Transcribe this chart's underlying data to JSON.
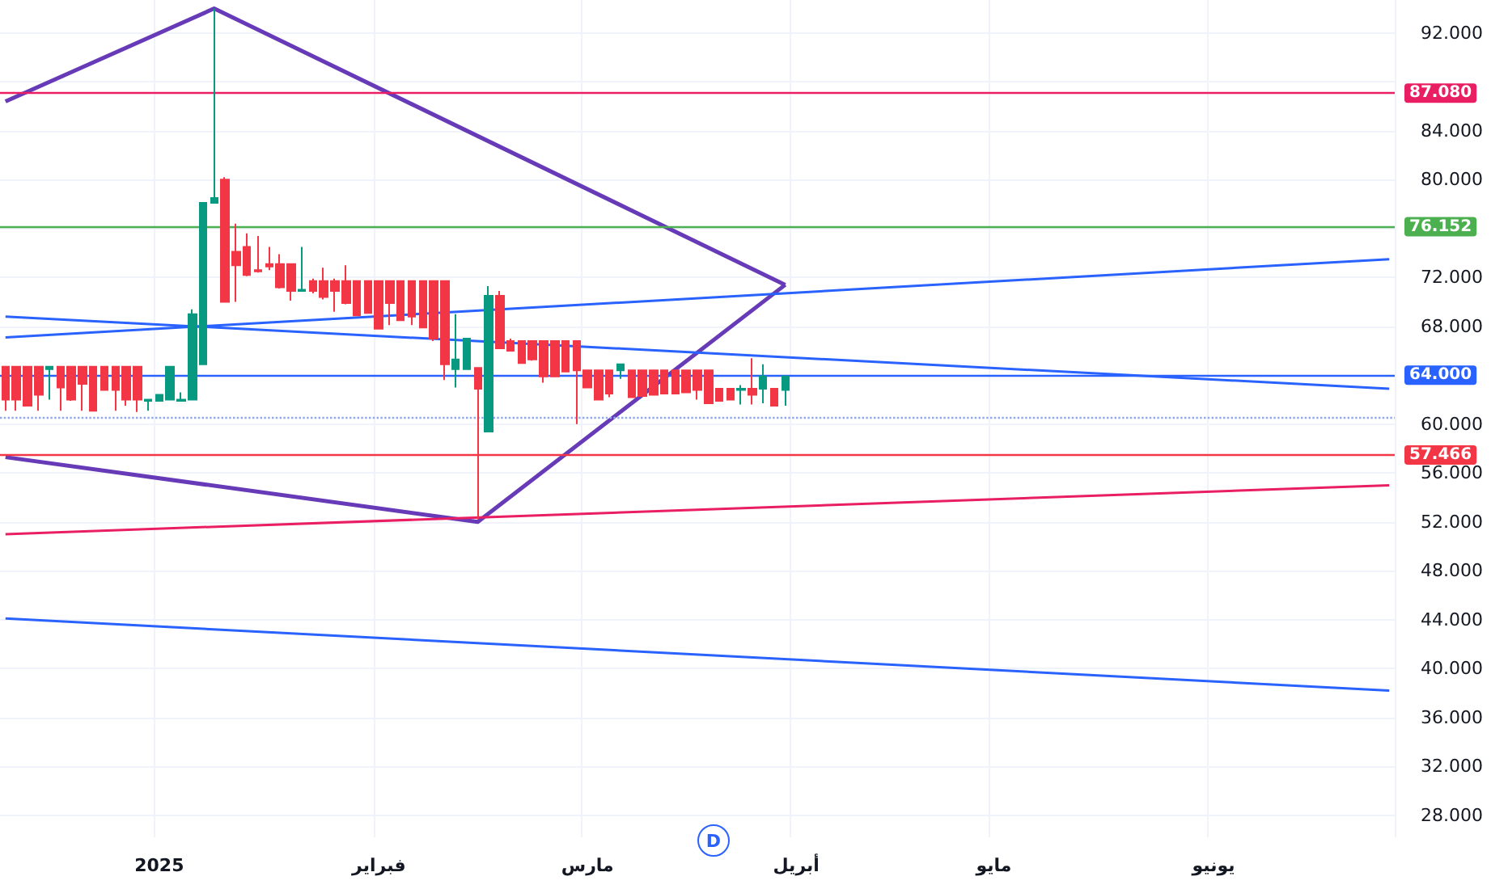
{
  "chart_data": {
    "type": "candlestick",
    "grid": true,
    "categories": [
      null,
      null,
      null,
      null,
      null,
      null,
      null,
      null,
      null,
      null,
      null,
      null,
      null,
      null,
      "2025",
      null,
      null,
      null,
      null,
      null,
      null,
      null,
      null,
      null,
      null,
      null,
      null,
      null,
      null,
      null,
      null,
      null,
      null,
      null,
      "فبراير",
      null,
      null,
      null,
      null,
      null,
      null,
      null,
      null,
      null,
      null,
      null,
      null,
      null,
      null,
      null,
      null,
      null,
      null,
      "مارس",
      null,
      null,
      null,
      null,
      null,
      null,
      null,
      null,
      null,
      null,
      null,
      null,
      null,
      null,
      null,
      null,
      null,
      null,
      "أبريل",
      null,
      null,
      null,
      null,
      null,
      null,
      null,
      null,
      null,
      null,
      null,
      null,
      null,
      null,
      null,
      null,
      null,
      "مايو",
      null,
      null,
      null,
      null,
      null,
      null,
      null,
      null,
      null,
      null,
      null,
      null,
      null,
      null,
      null,
      null,
      null,
      null,
      null,
      "يونيو",
      null,
      null,
      null,
      null,
      null,
      null,
      null,
      null,
      null,
      null,
      null,
      null,
      null,
      null,
      null,
      null
    ],
    "ylim": [
      26.2,
      94.7
    ],
    "yticks": [
      {
        "value": 28,
        "label": "28.000"
      },
      {
        "value": 32,
        "label": "32.000"
      },
      {
        "value": 36,
        "label": "36.000"
      },
      {
        "value": 40,
        "label": "40.000"
      },
      {
        "value": 44,
        "label": "44.000"
      },
      {
        "value": 48,
        "label": "48.000"
      },
      {
        "value": 52,
        "label": "52.000"
      },
      {
        "value": 56,
        "label": "56.000"
      },
      {
        "value": 60,
        "label": "60.000"
      },
      {
        "value": 64,
        "label": null
      },
      {
        "value": 68,
        "label": "68.000"
      },
      {
        "value": 72,
        "label": "72.000"
      },
      {
        "value": 76,
        "label": null
      },
      {
        "value": 80,
        "label": "80.000"
      },
      {
        "value": 84,
        "label": "84.000"
      },
      {
        "value": 88,
        "label": null
      },
      {
        "value": 92,
        "label": "92.000"
      }
    ],
    "annotations": [
      "D"
    ],
    "ref_lines": [
      {
        "axis": "y",
        "value": 87.08,
        "label": "87.080",
        "color": "#e91e63"
      },
      {
        "axis": "y",
        "value": 76.152,
        "label": "76.152",
        "color": "#4caf50"
      },
      {
        "axis": "y",
        "value": 64,
        "label": "64.000",
        "color": "#2962ff"
      },
      {
        "axis": "y",
        "value": 57.466,
        "label": "57.466",
        "color": "#f23645"
      },
      {
        "axis": "y",
        "value": 60.5,
        "color": "#90a8f0",
        "line_style": "dotted"
      }
    ],
    "series": [
      {
        "ohlc": [
          [
            64.7,
            64.7,
            61.1,
            62.0
          ],
          [
            64.7,
            64.7,
            61.1,
            62.0
          ],
          [
            64.7,
            64.7,
            61.5,
            61.5
          ],
          [
            64.7,
            64.7,
            61.1,
            62.4
          ],
          [
            64.5,
            64.7,
            62.0,
            64.7
          ],
          [
            64.7,
            64.7,
            61.1,
            63.0
          ],
          [
            64.7,
            64.7,
            61.9,
            62.0
          ],
          [
            64.7,
            64.7,
            61.1,
            63.3
          ],
          [
            64.7,
            64.7,
            61.1,
            61.1
          ],
          [
            64.7,
            64.7,
            62.8,
            62.8
          ],
          [
            64.7,
            64.7,
            61.1,
            62.8
          ],
          [
            64.7,
            64.7,
            61.5,
            62.0
          ],
          [
            64.7,
            64.7,
            61.0,
            62.0
          ],
          [
            61.9,
            62.0,
            61.1,
            62.0
          ],
          [
            61.9,
            62.4,
            61.9,
            62.4
          ],
          [
            62.0,
            64.7,
            62.0,
            64.7
          ],
          [
            61.9,
            62.6,
            61.9,
            62.0
          ],
          [
            62.0,
            69.4,
            62.0,
            69.0
          ],
          [
            64.9,
            78.1,
            64.9,
            78.1
          ],
          [
            78.1,
            94.0,
            78.1,
            78.5
          ],
          [
            80.0,
            80.2,
            70.0,
            70.0
          ],
          [
            74.1,
            76.4,
            70.0,
            73.0
          ],
          [
            74.5,
            75.6,
            72.1,
            72.2
          ],
          [
            72.6,
            75.4,
            72.4,
            72.5
          ],
          [
            73.1,
            74.5,
            72.6,
            72.9
          ],
          [
            73.1,
            73.9,
            71.1,
            71.2
          ],
          [
            73.1,
            73.1,
            70.1,
            70.9
          ],
          [
            70.9,
            74.5,
            70.9,
            71.0
          ],
          [
            71.7,
            71.9,
            70.7,
            70.9
          ],
          [
            71.7,
            72.8,
            70.2,
            70.4
          ],
          [
            71.7,
            71.9,
            69.2,
            70.9
          ],
          [
            71.7,
            73.0,
            69.8,
            69.9
          ],
          [
            71.7,
            71.7,
            68.9,
            68.9
          ],
          [
            71.7,
            71.7,
            69.1,
            69.1
          ],
          [
            71.7,
            71.7,
            67.8,
            67.8
          ],
          [
            71.7,
            71.7,
            68.1,
            69.9
          ],
          [
            71.7,
            71.7,
            68.5,
            68.5
          ],
          [
            71.7,
            71.7,
            68.1,
            68.8
          ],
          [
            71.7,
            71.7,
            67.9,
            67.9
          ],
          [
            71.7,
            71.7,
            66.8,
            67.0
          ],
          [
            71.7,
            71.7,
            63.6,
            64.9
          ],
          [
            64.5,
            69.0,
            63.0,
            65.3
          ],
          [
            64.5,
            67.0,
            64.5,
            67.0
          ],
          [
            64.6,
            64.6,
            52.2,
            62.9
          ],
          [
            59.4,
            71.3,
            59.4,
            70.5
          ],
          [
            70.5,
            70.9,
            66.2,
            66.2
          ],
          [
            66.8,
            67.0,
            66.0,
            66.0
          ],
          [
            66.8,
            66.8,
            65.0,
            65.0
          ],
          [
            66.8,
            66.8,
            65.2,
            65.3
          ],
          [
            66.8,
            66.8,
            63.4,
            63.9
          ],
          [
            66.8,
            66.8,
            63.9,
            63.9
          ],
          [
            66.8,
            66.8,
            64.3,
            64.3
          ],
          [
            66.8,
            66.8,
            60.0,
            64.4
          ],
          [
            64.4,
            64.4,
            63.0,
            63.0
          ],
          [
            64.4,
            64.4,
            62.0,
            62.0
          ],
          [
            64.4,
            64.4,
            62.2,
            62.5
          ],
          [
            64.4,
            64.9,
            63.7,
            64.9
          ],
          [
            64.4,
            64.4,
            62.2,
            62.2
          ],
          [
            64.4,
            64.4,
            62.3,
            62.3
          ],
          [
            64.4,
            64.4,
            62.4,
            62.4
          ],
          [
            64.4,
            64.4,
            62.5,
            62.5
          ],
          [
            64.4,
            64.4,
            62.5,
            62.5
          ],
          [
            64.4,
            64.4,
            62.6,
            62.6
          ],
          [
            64.4,
            64.4,
            62.0,
            62.8
          ],
          [
            64.4,
            64.4,
            61.7,
            61.7
          ],
          [
            62.9,
            62.9,
            61.9,
            61.9
          ],
          [
            62.9,
            62.9,
            62.0,
            62.0
          ],
          [
            62.8,
            63.2,
            61.6,
            62.9
          ],
          [
            62.9,
            65.4,
            61.6,
            62.4
          ],
          [
            62.9,
            64.9,
            61.7,
            63.9
          ],
          [
            62.9,
            62.9,
            61.5,
            61.5
          ],
          [
            62.8,
            63.9,
            61.5,
            63.9
          ],
          null,
          null,
          null,
          null,
          null,
          null,
          null,
          null,
          null,
          null,
          null,
          null,
          null,
          null,
          null,
          null,
          null,
          null,
          null,
          null,
          null,
          null,
          null,
          null,
          null,
          null,
          null,
          null,
          null,
          null,
          null,
          null,
          null,
          null,
          null,
          null,
          null,
          null,
          null,
          null,
          null,
          null,
          null,
          null,
          null,
          null,
          null,
          null,
          null,
          null,
          null,
          null,
          null,
          null,
          null
        ]
      },
      {
        "type": "line",
        "color": "#673ab7",
        "values": [
          86.4,
          null,
          null,
          null,
          null,
          null,
          null,
          null,
          null,
          null,
          null,
          null,
          null,
          null,
          null,
          null,
          null,
          null,
          null,
          94.0,
          null,
          null,
          null,
          null,
          null,
          null,
          null,
          null,
          null,
          null,
          null,
          null,
          null,
          null,
          null,
          null,
          null,
          null,
          null,
          null,
          null,
          null,
          null,
          null,
          null,
          null,
          null,
          null,
          null,
          null,
          null,
          null,
          null,
          null,
          null,
          null,
          null,
          null,
          null,
          null,
          null,
          null,
          null,
          null,
          null,
          null,
          null,
          null,
          null,
          null,
          null,
          71.4,
          null,
          null,
          null,
          null,
          null,
          null,
          null,
          null,
          null,
          null,
          null,
          null,
          null,
          null,
          null,
          null,
          null,
          null,
          null,
          null,
          null,
          null,
          null,
          null,
          null,
          null,
          null,
          null,
          null,
          null,
          null,
          null,
          null,
          null,
          null,
          null,
          null,
          null,
          null,
          null,
          null,
          null,
          null,
          null,
          null,
          null,
          null,
          null,
          null,
          null,
          null,
          null,
          null,
          null,
          null
        ]
      },
      {
        "type": "line",
        "color": "#673ab7",
        "values": [
          57.3,
          null,
          null,
          null,
          null,
          null,
          null,
          null,
          null,
          null,
          null,
          null,
          null,
          null,
          null,
          null,
          null,
          null,
          null,
          null,
          null,
          null,
          null,
          null,
          null,
          null,
          null,
          null,
          null,
          null,
          null,
          null,
          null,
          null,
          null,
          null,
          null,
          null,
          null,
          null,
          null,
          null,
          null,
          52.0,
          null,
          null,
          null,
          null,
          null,
          null,
          null,
          null,
          null,
          null,
          null,
          null,
          null,
          null,
          null,
          null,
          null,
          null,
          null,
          null,
          null,
          null,
          null,
          null,
          null,
          null,
          null,
          71.4,
          null,
          null,
          null,
          null,
          null,
          null,
          null,
          null,
          null,
          null,
          null,
          null,
          null,
          null,
          null,
          null,
          null,
          null,
          null,
          null,
          null,
          null,
          null,
          null,
          null,
          null,
          null,
          null,
          null,
          null,
          null,
          null,
          null,
          null,
          null,
          null,
          null,
          null,
          null,
          null,
          null,
          null,
          null,
          null,
          null,
          null,
          null,
          null,
          null,
          null,
          null,
          null,
          null,
          null,
          null
        ]
      },
      {
        "type": "line",
        "color": "#2962ff",
        "values": [
          67.1,
          null,
          null,
          null,
          null,
          null,
          null,
          null,
          null,
          null,
          null,
          null,
          null,
          null,
          null,
          null,
          null,
          null,
          null,
          null,
          null,
          null,
          null,
          null,
          null,
          null,
          null,
          null,
          null,
          null,
          null,
          null,
          null,
          null,
          null,
          null,
          null,
          null,
          null,
          null,
          null,
          null,
          null,
          null,
          null,
          null,
          null,
          null,
          null,
          null,
          null,
          null,
          null,
          null,
          null,
          null,
          null,
          null,
          null,
          null,
          null,
          null,
          null,
          null,
          null,
          null,
          null,
          null,
          null,
          null,
          null,
          null,
          null,
          null,
          null,
          null,
          null,
          null,
          null,
          null,
          null,
          null,
          null,
          null,
          null,
          null,
          null,
          null,
          null,
          null,
          null,
          null,
          null,
          null,
          null,
          null,
          null,
          null,
          null,
          null,
          null,
          null,
          null,
          null,
          null,
          null,
          null,
          null,
          null,
          null,
          null,
          null,
          null,
          null,
          null,
          null,
          null,
          null,
          null,
          null,
          null,
          null,
          null,
          null,
          null,
          null,
          73.5
        ]
      },
      {
        "type": "line",
        "color": "#2962ff",
        "values": [
          68.8,
          null,
          null,
          null,
          null,
          null,
          null,
          null,
          null,
          null,
          null,
          null,
          null,
          null,
          null,
          null,
          null,
          null,
          null,
          null,
          null,
          null,
          null,
          null,
          null,
          null,
          null,
          null,
          null,
          null,
          null,
          null,
          null,
          null,
          null,
          null,
          null,
          null,
          null,
          null,
          null,
          null,
          null,
          null,
          null,
          null,
          null,
          null,
          null,
          null,
          null,
          null,
          null,
          null,
          null,
          null,
          null,
          null,
          null,
          null,
          null,
          null,
          null,
          null,
          null,
          null,
          null,
          null,
          null,
          null,
          null,
          null,
          null,
          null,
          null,
          null,
          null,
          null,
          null,
          null,
          null,
          null,
          null,
          null,
          null,
          null,
          null,
          null,
          null,
          null,
          null,
          null,
          null,
          null,
          null,
          null,
          null,
          null,
          null,
          null,
          null,
          null,
          null,
          null,
          null,
          null,
          null,
          null,
          null,
          null,
          null,
          null,
          null,
          null,
          null,
          null,
          null,
          null,
          null,
          null,
          null,
          null,
          null,
          null,
          null,
          null,
          62.9
        ]
      },
      {
        "type": "line",
        "color": "#2962ff",
        "values": [
          44.1,
          null,
          null,
          null,
          null,
          null,
          null,
          null,
          null,
          null,
          null,
          null,
          null,
          null,
          null,
          null,
          null,
          null,
          null,
          null,
          null,
          null,
          null,
          null,
          null,
          null,
          null,
          null,
          null,
          null,
          null,
          null,
          null,
          null,
          null,
          null,
          null,
          null,
          null,
          null,
          null,
          null,
          null,
          null,
          null,
          null,
          null,
          null,
          null,
          null,
          null,
          null,
          null,
          null,
          null,
          null,
          null,
          null,
          null,
          null,
          null,
          null,
          null,
          null,
          null,
          null,
          null,
          null,
          null,
          null,
          null,
          null,
          null,
          null,
          null,
          null,
          null,
          null,
          null,
          null,
          null,
          null,
          null,
          null,
          null,
          null,
          null,
          null,
          null,
          null,
          null,
          null,
          null,
          null,
          null,
          null,
          null,
          null,
          null,
          null,
          null,
          null,
          null,
          null,
          null,
          null,
          null,
          null,
          null,
          null,
          null,
          null,
          null,
          null,
          null,
          null,
          null,
          null,
          null,
          null,
          null,
          null,
          null,
          null,
          null,
          null,
          38.2
        ]
      },
      {
        "type": "line",
        "color": "#e91e63",
        "values": [
          51.0,
          null,
          null,
          null,
          null,
          null,
          null,
          null,
          null,
          null,
          null,
          null,
          null,
          null,
          null,
          null,
          null,
          null,
          null,
          null,
          null,
          null,
          null,
          null,
          null,
          null,
          null,
          null,
          null,
          null,
          null,
          null,
          null,
          null,
          null,
          null,
          null,
          null,
          null,
          null,
          null,
          null,
          null,
          null,
          null,
          null,
          null,
          null,
          null,
          null,
          null,
          null,
          null,
          null,
          null,
          null,
          null,
          null,
          null,
          null,
          null,
          null,
          null,
          null,
          null,
          null,
          null,
          null,
          null,
          null,
          null,
          null,
          null,
          null,
          null,
          null,
          null,
          null,
          null,
          null,
          null,
          null,
          null,
          null,
          null,
          null,
          null,
          null,
          null,
          null,
          null,
          null,
          null,
          null,
          null,
          null,
          null,
          null,
          null,
          null,
          null,
          null,
          null,
          null,
          null,
          null,
          null,
          null,
          null,
          null,
          null,
          null,
          null,
          null,
          null,
          null,
          null,
          null,
          null,
          null,
          null,
          null,
          null,
          null,
          null,
          null,
          55.0
        ]
      }
    ]
  }
}
